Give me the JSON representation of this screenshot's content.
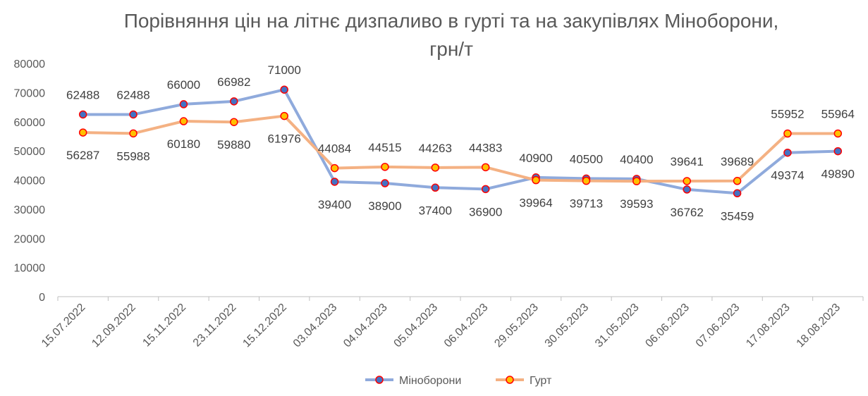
{
  "chart_data": {
    "type": "line",
    "title_line1": "Порівняння цін на літнє дизпаливо в гурті та на закупівлях Міноборони,",
    "title_line2": "грн/т",
    "xlabel": "",
    "ylabel": "",
    "ylim": [
      0,
      80000
    ],
    "yticks": [
      0,
      10000,
      20000,
      30000,
      40000,
      50000,
      60000,
      70000,
      80000
    ],
    "grid": false,
    "legend_position": "bottom",
    "categories": [
      "15.07.2022",
      "12.09.2022",
      "15.11.2022",
      "23.11.2022",
      "15.12.2022",
      "03.04.2023",
      "04.04.2023",
      "05.04.2023",
      "06.04.2023",
      "29.05.2023",
      "30.05.2023",
      "31.05.2023",
      "06.06.2023",
      "07.06.2023",
      "17.08.2023",
      "18.08.2023"
    ],
    "series": [
      {
        "name": "Міноборони",
        "color": "#8FAADC",
        "marker_fill": "#4472C4",
        "marker_stroke": "#FF0000",
        "values": [
          62488,
          62488,
          66000,
          66982,
          71000,
          39400,
          38900,
          37400,
          36900,
          40900,
          40500,
          40400,
          36762,
          35459,
          49374,
          49890
        ]
      },
      {
        "name": "Гурт",
        "color": "#F4B183",
        "marker_fill": "#FFC000",
        "marker_stroke": "#FF0000",
        "values": [
          56287,
          55988,
          60180,
          59880,
          61976,
          44084,
          44515,
          44263,
          44383,
          39964,
          39713,
          39593,
          39641,
          39689,
          55952,
          55964
        ]
      }
    ]
  }
}
